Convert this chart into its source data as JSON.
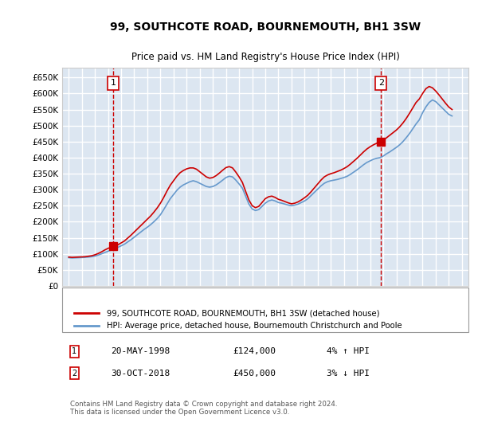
{
  "title": "99, SOUTHCOTE ROAD, BOURNEMOUTH, BH1 3SW",
  "subtitle": "Price paid vs. HM Land Registry's House Price Index (HPI)",
  "ylabel_ticks": [
    "£0",
    "£50K",
    "£100K",
    "£150K",
    "£200K",
    "£250K",
    "£300K",
    "£350K",
    "£400K",
    "£450K",
    "£500K",
    "£550K",
    "£600K",
    "£650K"
  ],
  "ylim": [
    0,
    680000
  ],
  "xlim_start": 1994.5,
  "xlim_end": 2025.5,
  "background_color": "#dce6f1",
  "plot_bg_color": "#dce6f1",
  "grid_color": "#ffffff",
  "red_line_color": "#cc0000",
  "blue_line_color": "#6699cc",
  "purchase1_x": 1998.38,
  "purchase1_y": 124000,
  "purchase2_x": 2018.83,
  "purchase2_y": 450000,
  "legend_label_red": "99, SOUTHCOTE ROAD, BOURNEMOUTH, BH1 3SW (detached house)",
  "legend_label_blue": "HPI: Average price, detached house, Bournemouth Christchurch and Poole",
  "table_row1": [
    "1",
    "20-MAY-1998",
    "£124,000",
    "4% ↑ HPI"
  ],
  "table_row2": [
    "2",
    "30-OCT-2018",
    "£450,000",
    "3% ↓ HPI"
  ],
  "footnote": "Contains HM Land Registry data © Crown copyright and database right 2024.\nThis data is licensed under the Open Government Licence v3.0.",
  "hpi_years": [
    1995,
    1995.25,
    1995.5,
    1995.75,
    1996,
    1996.25,
    1996.5,
    1996.75,
    1997,
    1997.25,
    1997.5,
    1997.75,
    1998,
    1998.25,
    1998.5,
    1998.75,
    1999,
    1999.25,
    1999.5,
    1999.75,
    2000,
    2000.25,
    2000.5,
    2000.75,
    2001,
    2001.25,
    2001.5,
    2001.75,
    2002,
    2002.25,
    2002.5,
    2002.75,
    2003,
    2003.25,
    2003.5,
    2003.75,
    2004,
    2004.25,
    2004.5,
    2004.75,
    2005,
    2005.25,
    2005.5,
    2005.75,
    2006,
    2006.25,
    2006.5,
    2006.75,
    2007,
    2007.25,
    2007.5,
    2007.75,
    2008,
    2008.25,
    2008.5,
    2008.75,
    2009,
    2009.25,
    2009.5,
    2009.75,
    2010,
    2010.25,
    2010.5,
    2010.75,
    2011,
    2011.25,
    2011.5,
    2011.75,
    2012,
    2012.25,
    2012.5,
    2012.75,
    2013,
    2013.25,
    2013.5,
    2013.75,
    2014,
    2014.25,
    2014.5,
    2014.75,
    2015,
    2015.25,
    2015.5,
    2015.75,
    2016,
    2016.25,
    2016.5,
    2016.75,
    2017,
    2017.25,
    2017.5,
    2017.75,
    2018,
    2018.25,
    2018.5,
    2018.75,
    2019,
    2019.25,
    2019.5,
    2019.75,
    2020,
    2020.25,
    2020.5,
    2020.75,
    2021,
    2021.25,
    2021.5,
    2021.75,
    2022,
    2022.25,
    2022.5,
    2022.75,
    2023,
    2023.25,
    2023.5,
    2023.75,
    2024,
    2024.25
  ],
  "hpi_values": [
    88000,
    87000,
    87500,
    88000,
    88500,
    89000,
    90000,
    91000,
    93000,
    96000,
    100000,
    104000,
    108000,
    112000,
    116000,
    120000,
    125000,
    130000,
    137000,
    144000,
    152000,
    160000,
    168000,
    176000,
    183000,
    191000,
    200000,
    210000,
    222000,
    238000,
    255000,
    272000,
    285000,
    298000,
    308000,
    315000,
    320000,
    325000,
    328000,
    325000,
    320000,
    315000,
    310000,
    308000,
    310000,
    315000,
    322000,
    330000,
    338000,
    342000,
    340000,
    330000,
    318000,
    305000,
    280000,
    255000,
    240000,
    235000,
    238000,
    248000,
    258000,
    265000,
    268000,
    265000,
    260000,
    258000,
    255000,
    252000,
    250000,
    252000,
    255000,
    260000,
    265000,
    272000,
    282000,
    292000,
    302000,
    312000,
    320000,
    325000,
    328000,
    330000,
    332000,
    335000,
    338000,
    342000,
    348000,
    355000,
    362000,
    370000,
    378000,
    385000,
    390000,
    395000,
    398000,
    400000,
    405000,
    412000,
    418000,
    425000,
    432000,
    440000,
    450000,
    462000,
    475000,
    490000,
    505000,
    518000,
    540000,
    558000,
    572000,
    580000,
    575000,
    565000,
    555000,
    545000,
    535000,
    530000
  ],
  "red_years": [
    1995,
    1995.25,
    1995.5,
    1995.75,
    1996,
    1996.25,
    1996.5,
    1996.75,
    1997,
    1997.25,
    1997.5,
    1997.75,
    1998,
    1998.25,
    1998.5,
    1998.75,
    1999,
    1999.25,
    1999.5,
    1999.75,
    2000,
    2000.25,
    2000.5,
    2000.75,
    2001,
    2001.25,
    2001.5,
    2001.75,
    2002,
    2002.25,
    2002.5,
    2002.75,
    2003,
    2003.25,
    2003.5,
    2003.75,
    2004,
    2004.25,
    2004.5,
    2004.75,
    2005,
    2005.25,
    2005.5,
    2005.75,
    2006,
    2006.25,
    2006.5,
    2006.75,
    2007,
    2007.25,
    2007.5,
    2007.75,
    2008,
    2008.25,
    2008.5,
    2008.75,
    2009,
    2009.25,
    2009.5,
    2009.75,
    2010,
    2010.25,
    2010.5,
    2010.75,
    2011,
    2011.25,
    2011.5,
    2011.75,
    2012,
    2012.25,
    2012.5,
    2012.75,
    2013,
    2013.25,
    2013.5,
    2013.75,
    2014,
    2014.25,
    2014.5,
    2014.75,
    2015,
    2015.25,
    2015.5,
    2015.75,
    2016,
    2016.25,
    2016.5,
    2016.75,
    2017,
    2017.25,
    2017.5,
    2017.75,
    2018,
    2018.25,
    2018.5,
    2018.75,
    2019,
    2019.25,
    2019.5,
    2019.75,
    2020,
    2020.25,
    2020.5,
    2020.75,
    2021,
    2021.25,
    2021.5,
    2021.75,
    2022,
    2022.25,
    2022.5,
    2022.75,
    2023,
    2023.25,
    2023.5,
    2023.75,
    2024,
    2024.25
  ],
  "red_values": [
    90000,
    89000,
    89500,
    90000,
    90500,
    91000,
    92500,
    94000,
    97000,
    101000,
    106000,
    112000,
    117000,
    121000,
    124000,
    128000,
    134000,
    140000,
    149000,
    158000,
    168000,
    178000,
    188000,
    198000,
    208000,
    218000,
    230000,
    243000,
    258000,
    276000,
    296000,
    314000,
    328000,
    342000,
    353000,
    360000,
    365000,
    368000,
    368000,
    364000,
    356000,
    348000,
    340000,
    336000,
    338000,
    344000,
    352000,
    361000,
    369000,
    372000,
    368000,
    355000,
    340000,
    323000,
    295000,
    268000,
    250000,
    244000,
    248000,
    260000,
    272000,
    278000,
    280000,
    276000,
    270000,
    267000,
    263000,
    259000,
    256000,
    258000,
    262000,
    268000,
    275000,
    283000,
    294000,
    306000,
    318000,
    330000,
    340000,
    346000,
    350000,
    353000,
    357000,
    361000,
    366000,
    372000,
    380000,
    389000,
    398000,
    408000,
    418000,
    427000,
    434000,
    440000,
    445000,
    449000,
    455000,
    462000,
    470000,
    478000,
    486000,
    496000,
    508000,
    522000,
    538000,
    555000,
    572000,
    583000,
    600000,
    615000,
    622000,
    618000,
    608000,
    596000,
    583000,
    570000,
    558000,
    550000
  ]
}
